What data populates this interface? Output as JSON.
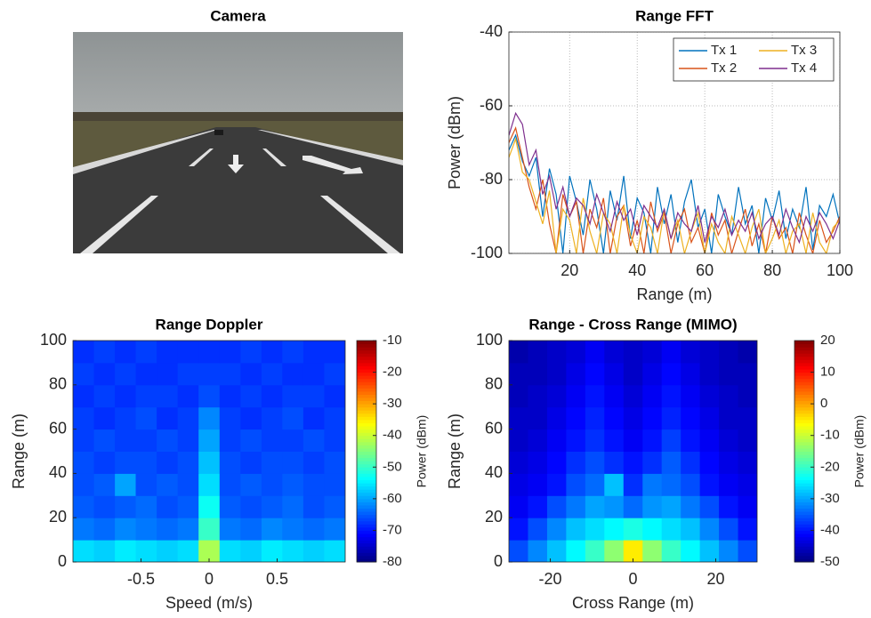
{
  "chart_data": [
    {
      "type": "image",
      "title": "Camera"
    },
    {
      "type": "line",
      "title": "Range FFT",
      "xlabel": "Range (m)",
      "ylabel": "Power (dBm)",
      "x": [
        2,
        4,
        6,
        8,
        10,
        12,
        14,
        16,
        18,
        20,
        22,
        24,
        26,
        28,
        30,
        32,
        34,
        36,
        38,
        40,
        42,
        44,
        46,
        48,
        50,
        52,
        54,
        56,
        58,
        60,
        62,
        64,
        66,
        68,
        70,
        72,
        74,
        76,
        78,
        80,
        82,
        84,
        86,
        88,
        90,
        92,
        94,
        96,
        98,
        100
      ],
      "xlim": [
        2,
        100
      ],
      "xticks": [
        20,
        40,
        60,
        80,
        100
      ],
      "ylim": [
        -100,
        -40
      ],
      "yticks": [
        -100,
        -80,
        -60,
        -40
      ],
      "grid": true,
      "legend": "upper right",
      "series": [
        {
          "name": "Tx 1",
          "color": "#0072bd",
          "values": [
            -72,
            -68,
            -75,
            -79,
            -74,
            -90,
            -77,
            -84,
            -100,
            -79,
            -86,
            -95,
            -80,
            -88,
            -100,
            -83,
            -91,
            -79,
            -96,
            -85,
            -89,
            -100,
            -82,
            -92,
            -84,
            -97,
            -86,
            -80,
            -93,
            -88,
            -100,
            -84,
            -90,
            -95,
            -82,
            -92,
            -87,
            -100,
            -85,
            -91,
            -83,
            -96,
            -88,
            -93,
            -82,
            -99,
            -87,
            -90,
            -84,
            -92
          ]
        },
        {
          "name": "Tx 2",
          "color": "#d95319",
          "values": [
            -70,
            -66,
            -74,
            -82,
            -88,
            -80,
            -92,
            -100,
            -84,
            -90,
            -86,
            -100,
            -88,
            -93,
            -85,
            -100,
            -90,
            -87,
            -98,
            -91,
            -100,
            -86,
            -94,
            -89,
            -100,
            -92,
            -88,
            -97,
            -93,
            -100,
            -89,
            -95,
            -91,
            -100,
            -94,
            -88,
            -98,
            -92,
            -100,
            -90,
            -96,
            -93,
            -100,
            -89,
            -95,
            -100,
            -91,
            -97,
            -94,
            -90
          ]
        },
        {
          "name": "Tx 3",
          "color": "#edb120",
          "values": [
            -74,
            -69,
            -78,
            -80,
            -86,
            -92,
            -83,
            -100,
            -88,
            -91,
            -100,
            -85,
            -94,
            -100,
            -89,
            -92,
            -100,
            -87,
            -95,
            -100,
            -90,
            -93,
            -100,
            -88,
            -96,
            -91,
            -100,
            -94,
            -89,
            -100,
            -92,
            -97,
            -100,
            -90,
            -95,
            -100,
            -93,
            -88,
            -100,
            -96,
            -91,
            -100,
            -94,
            -92,
            -100,
            -89,
            -97,
            -100,
            -93,
            -91
          ]
        },
        {
          "name": "Tx 4",
          "color": "#7e2f8e",
          "values": [
            -68,
            -62,
            -65,
            -76,
            -72,
            -84,
            -79,
            -88,
            -82,
            -90,
            -85,
            -87,
            -92,
            -84,
            -89,
            -94,
            -86,
            -91,
            -88,
            -95,
            -87,
            -90,
            -93,
            -88,
            -96,
            -89,
            -92,
            -94,
            -87,
            -97,
            -90,
            -93,
            -88,
            -95,
            -91,
            -94,
            -89,
            -96,
            -92,
            -90,
            -95,
            -88,
            -93,
            -97,
            -90,
            -94,
            -89,
            -92,
            -96,
            -91
          ]
        }
      ]
    },
    {
      "type": "heatmap",
      "title": "Range Doppler",
      "xlabel": "Speed (m/s)",
      "ylabel": "Range (m)",
      "xlim": [
        -1,
        1
      ],
      "xticks": [
        -0.5,
        0,
        0.5
      ],
      "ylim": [
        0,
        100
      ],
      "yticks": [
        0,
        20,
        40,
        60,
        80,
        100
      ],
      "colormap": "jet",
      "clim": [
        -80,
        -10
      ],
      "cticks": [
        -80,
        -70,
        -60,
        -50,
        -40,
        -30,
        -20,
        -10
      ],
      "colorbar_label": "Power (dBm)",
      "x": [
        -0.923,
        -0.769,
        -0.615,
        -0.462,
        -0.308,
        -0.154,
        0,
        0.154,
        0.308,
        0.462,
        0.615,
        0.769,
        0.923
      ],
      "y": [
        5,
        15,
        25,
        35,
        45,
        55,
        65,
        75,
        85,
        95
      ],
      "z": [
        [
          -56,
          -57,
          -55,
          -56,
          -57,
          -56,
          -42,
          -56,
          -57,
          -55,
          -56,
          -57,
          -56
        ],
        [
          -63,
          -64,
          -62,
          -63,
          -64,
          -63,
          -50,
          -63,
          -64,
          -62,
          -63,
          -64,
          -63
        ],
        [
          -65,
          -66,
          -65,
          -64,
          -66,
          -65,
          -53,
          -65,
          -66,
          -65,
          -64,
          -66,
          -65
        ],
        [
          -66,
          -65,
          -60,
          -66,
          -65,
          -66,
          -56,
          -66,
          -65,
          -66,
          -65,
          -66,
          -66
        ],
        [
          -66,
          -67,
          -66,
          -66,
          -67,
          -66,
          -58,
          -66,
          -67,
          -66,
          -66,
          -67,
          -66
        ],
        [
          -67,
          -66,
          -67,
          -67,
          -66,
          -67,
          -60,
          -67,
          -66,
          -67,
          -67,
          -66,
          -67
        ],
        [
          -67,
          -68,
          -67,
          -66,
          -68,
          -67,
          -62,
          -67,
          -68,
          -67,
          -66,
          -68,
          -67
        ],
        [
          -68,
          -67,
          -68,
          -67,
          -67,
          -68,
          -66,
          -68,
          -67,
          -68,
          -67,
          -67,
          -68
        ],
        [
          -67,
          -68,
          -67,
          -68,
          -68,
          -67,
          -67,
          -67,
          -68,
          -67,
          -68,
          -68,
          -67
        ],
        [
          -68,
          -67,
          -68,
          -67,
          -68,
          -68,
          -68,
          -68,
          -67,
          -68,
          -67,
          -68,
          -68
        ]
      ]
    },
    {
      "type": "heatmap",
      "title": "Range - Cross Range (MIMO)",
      "xlabel": "Cross Range (m)",
      "ylabel": "Range (m)",
      "xlim": [
        -30,
        30
      ],
      "xticks": [
        -20,
        0,
        20
      ],
      "ylim": [
        0,
        100
      ],
      "yticks": [
        0,
        20,
        40,
        60,
        80,
        100
      ],
      "colormap": "jet",
      "clim": [
        -50,
        20
      ],
      "cticks": [
        -50,
        -40,
        -30,
        -20,
        -10,
        0,
        10,
        20
      ],
      "colorbar_label": "Power (dBm)",
      "x": [
        -27.69,
        -23.08,
        -18.46,
        -13.85,
        -9.23,
        -4.62,
        0,
        4.62,
        9.23,
        13.85,
        18.46,
        23.08,
        27.69
      ],
      "y": [
        5,
        15,
        25,
        35,
        45,
        55,
        65,
        75,
        85,
        95
      ],
      "z": [
        [
          -36,
          -32,
          -28,
          -24,
          -20,
          -14,
          -5,
          -14,
          -20,
          -24,
          -28,
          -32,
          -36
        ],
        [
          -40,
          -36,
          -32,
          -28,
          -26,
          -24,
          -22,
          -24,
          -26,
          -28,
          -32,
          -36,
          -40
        ],
        [
          -42,
          -40,
          -36,
          -33,
          -30,
          -31,
          -34,
          -31,
          -30,
          -33,
          -36,
          -40,
          -42
        ],
        [
          -43,
          -42,
          -40,
          -36,
          -34,
          -28,
          -38,
          -33,
          -34,
          -36,
          -40,
          -42,
          -43
        ],
        [
          -44,
          -43,
          -41,
          -38,
          -36,
          -38,
          -40,
          -38,
          -35,
          -38,
          -41,
          -43,
          -44
        ],
        [
          -45,
          -44,
          -42,
          -40,
          -38,
          -40,
          -42,
          -40,
          -37,
          -40,
          -42,
          -44,
          -45
        ],
        [
          -45,
          -45,
          -43,
          -41,
          -39,
          -41,
          -43,
          -41,
          -39,
          -41,
          -43,
          -45,
          -45
        ],
        [
          -46,
          -45,
          -44,
          -42,
          -40,
          -42,
          -44,
          -42,
          -40,
          -42,
          -44,
          -45,
          -46
        ],
        [
          -46,
          -46,
          -45,
          -43,
          -41,
          -43,
          -45,
          -43,
          -41,
          -43,
          -45,
          -46,
          -46
        ],
        [
          -47,
          -46,
          -45,
          -44,
          -42,
          -44,
          -45,
          -44,
          -42,
          -44,
          -45,
          -46,
          -47
        ]
      ]
    }
  ]
}
